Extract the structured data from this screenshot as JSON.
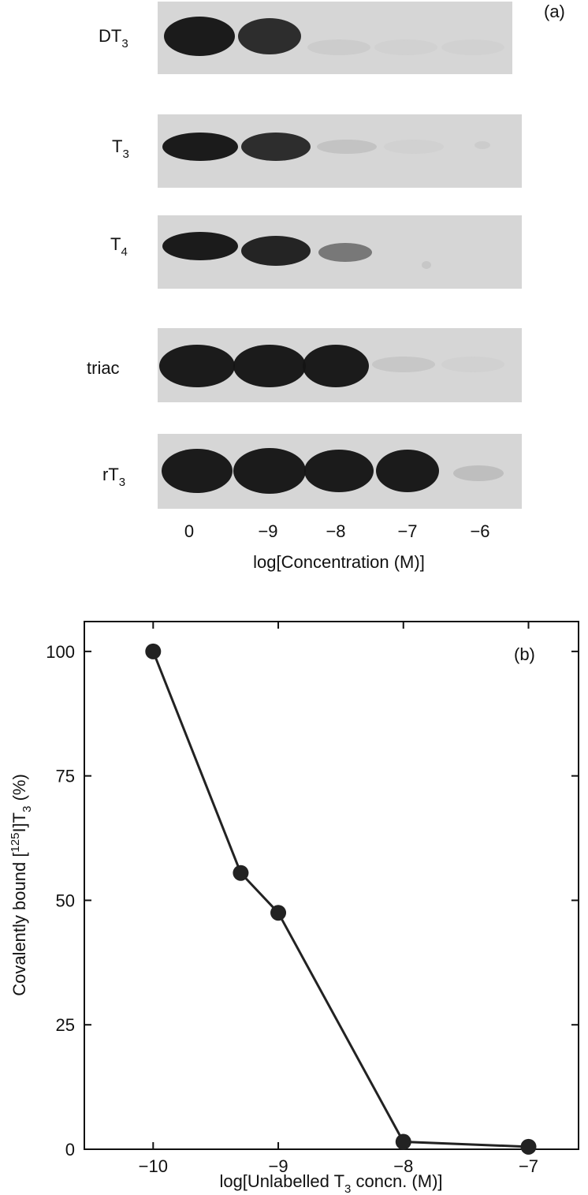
{
  "panel_a": {
    "label": "(a)",
    "rows": [
      {
        "name": "DT",
        "sub": "3",
        "intensity": [
          1.0,
          0.9,
          0.05,
          0.03,
          0.02
        ]
      },
      {
        "name": "T",
        "sub": "3",
        "intensity": [
          1.0,
          0.9,
          0.1,
          0.03,
          0.05
        ]
      },
      {
        "name": "T",
        "sub": "4",
        "intensity": [
          1.0,
          0.95,
          0.5,
          0.0,
          0.08
        ]
      },
      {
        "name": "triac",
        "sub": "",
        "intensity": [
          1.0,
          1.0,
          1.0,
          0.08,
          0.03
        ]
      },
      {
        "name": "rT",
        "sub": "3",
        "intensity": [
          1.0,
          1.0,
          1.0,
          1.0,
          0.12
        ]
      }
    ],
    "lane_labels": [
      "0",
      "−9",
      "−8",
      "−7",
      "−6"
    ],
    "xlabel": "log[Concentration (M)]",
    "band_color": "#151515",
    "strip_color": "#d6d6d6"
  },
  "chart_data": {
    "type": "line",
    "panel_label": "(b)",
    "x": [
      -10,
      -9.3,
      -9,
      -8,
      -7
    ],
    "y": [
      100,
      55.5,
      47.5,
      1.5,
      0.5
    ],
    "xlim": [
      -10.55,
      -6.6
    ],
    "ylim": [
      0,
      106
    ],
    "xticks": [
      -10,
      -9,
      -8,
      -7
    ],
    "xtick_labels": [
      "−10",
      "−9",
      "−8",
      "−7"
    ],
    "yticks": [
      0,
      25,
      50,
      75,
      100
    ],
    "ytick_labels": [
      "0",
      "25",
      "50",
      "75",
      "100"
    ],
    "xlabel": {
      "pre": "log[Unlabelled T",
      "sub": "3",
      "post": " concn. (M)]"
    },
    "ylabel": {
      "pre": "Covalently bound [",
      "sup": "125",
      "mid": "I]T",
      "sub": "3",
      "post": " (%)"
    },
    "grid": false,
    "line_color": "#222222",
    "marker_color": "#222222"
  }
}
